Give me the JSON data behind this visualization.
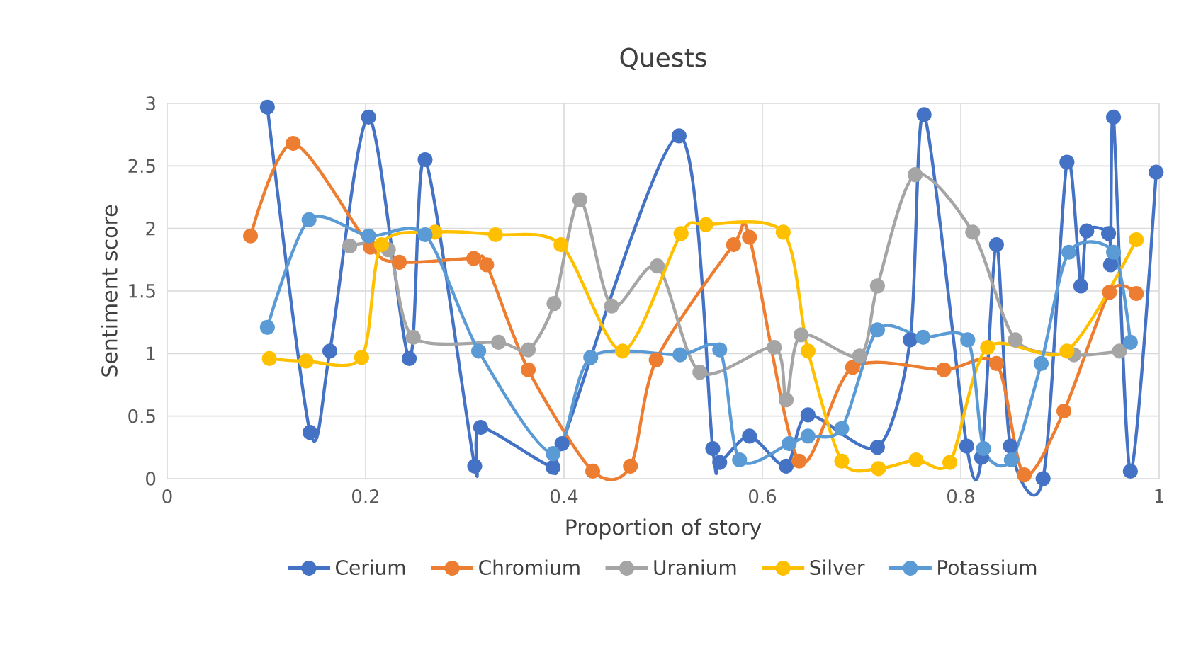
{
  "chart_data": {
    "type": "line",
    "title": "Quests",
    "xlabel": "Proportion of story",
    "ylabel": "Sentiment score",
    "xlim": [
      0,
      1
    ],
    "ylim": [
      0,
      3
    ],
    "xticks": [
      0,
      0.2,
      0.4,
      0.6,
      0.8,
      1
    ],
    "yticks": [
      0,
      0.5,
      1,
      1.5,
      2,
      2.5,
      3
    ],
    "grid": true,
    "legend": "bottom",
    "marker": "circle",
    "line_style": "solid",
    "series": [
      {
        "name": "Cerium",
        "color": "#4472c4",
        "x": [
          0.101,
          0.144,
          0.164,
          0.203,
          0.244,
          0.26,
          0.31,
          0.316,
          0.389,
          0.398,
          0.429,
          0.516,
          0.55,
          0.557,
          0.587,
          0.624,
          0.646,
          0.716,
          0.749,
          0.763,
          0.806,
          0.821,
          0.836,
          0.85,
          0.883,
          0.907,
          0.921,
          0.927,
          0.949,
          0.951,
          0.954,
          0.971,
          0.997
        ],
        "values": [
          2.97,
          0.37,
          1.02,
          2.89,
          0.96,
          2.55,
          0.1,
          0.41,
          0.09,
          0.28,
          null,
          2.74,
          0.24,
          0.13,
          0.34,
          0.1,
          0.51,
          0.25,
          1.11,
          2.91,
          0.26,
          0.17,
          1.87,
          0.26,
          0,
          2.53,
          1.54,
          1.98,
          1.96,
          1.71,
          2.89,
          0.06,
          2.45
        ]
      },
      {
        "name": "Chromium",
        "color": "#ed7d31",
        "x": [
          0.084,
          0.127,
          0.205,
          0.234,
          0.309,
          0.322,
          0.364,
          0.429,
          0.467,
          0.493,
          0.571,
          0.587,
          0.637,
          0.691,
          0.783,
          0.836,
          0.864,
          0.904,
          0.95,
          0.977
        ],
        "values": [
          1.94,
          2.68,
          1.85,
          1.73,
          1.76,
          1.71,
          0.87,
          0.06,
          0.1,
          0.95,
          1.87,
          1.93,
          0.14,
          0.89,
          0.87,
          0.92,
          0.03,
          0.54,
          1.49,
          1.48
        ]
      },
      {
        "name": "Uranium",
        "color": "#a5a5a5",
        "x": [
          0.184,
          0.223,
          0.248,
          0.334,
          0.364,
          0.39,
          0.416,
          0.448,
          0.494,
          0.537,
          0.612,
          0.624,
          0.639,
          0.698,
          0.716,
          0.754,
          0.812,
          0.855,
          0.914,
          0.96
        ],
        "values": [
          1.86,
          1.83,
          1.13,
          1.09,
          1.03,
          1.4,
          2.23,
          1.38,
          1.7,
          0.85,
          1.05,
          0.63,
          1.15,
          0.98,
          1.54,
          2.43,
          1.97,
          1.11,
          0.99,
          1.02
        ]
      },
      {
        "name": "Silver",
        "color": "#ffc000",
        "x": [
          0.103,
          0.14,
          0.196,
          0.216,
          0.27,
          0.331,
          0.397,
          0.459,
          0.518,
          0.543,
          0.621,
          0.646,
          0.68,
          0.717,
          0.755,
          0.789,
          0.827,
          0.907,
          0.977
        ],
        "values": [
          0.96,
          0.94,
          0.97,
          1.87,
          1.97,
          1.95,
          1.87,
          1.02,
          1.96,
          2.03,
          1.97,
          1.02,
          0.14,
          0.08,
          0.15,
          0.13,
          1.05,
          1.02,
          1.91
        ]
      },
      {
        "name": "Potassium",
        "color": "#5b9bd5",
        "x": [
          0.101,
          0.143,
          0.203,
          0.26,
          0.314,
          0.389,
          0.427,
          0.517,
          0.557,
          0.577,
          0.627,
          0.646,
          0.68,
          0.716,
          0.762,
          0.807,
          0.823,
          0.851,
          0.881,
          0.909,
          0.954,
          0.971
        ],
        "values": [
          1.21,
          2.07,
          1.94,
          1.95,
          1.02,
          0.2,
          0.97,
          0.99,
          1.03,
          0.15,
          0.28,
          0.34,
          0.4,
          1.19,
          1.13,
          1.11,
          0.24,
          0.15,
          0.92,
          1.81,
          1.81,
          1.09
        ]
      }
    ]
  }
}
